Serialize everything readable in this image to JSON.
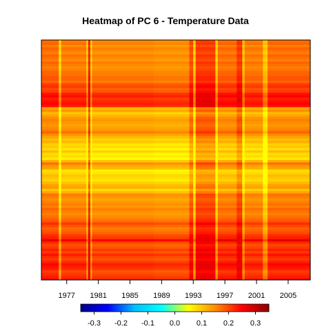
{
  "chart_data": {
    "type": "heatmap",
    "title": "Heatmap of PC 6  - Temperature Data",
    "x_tick_labels": [
      "1977",
      "1981",
      "1985",
      "1989",
      "1993",
      "1997",
      "2001",
      "2005"
    ],
    "x_tick_values": [
      1977,
      1981,
      1985,
      1989,
      1993,
      1997,
      2001,
      2005
    ],
    "xlim": [
      1973.8,
      2007.8
    ],
    "colorbar": {
      "tick_labels": [
        "-0.3",
        "-0.2",
        "-0.1",
        "0.0",
        "0.1",
        "0.2",
        "0.3"
      ],
      "tick_values": [
        -0.3,
        -0.2,
        -0.1,
        0.0,
        0.1,
        0.2,
        0.3
      ],
      "range": [
        -0.35,
        0.35
      ],
      "stops": [
        "#00008B",
        "#0000FF",
        "#00BFFF",
        "#00FFFF",
        "#FFFF00",
        "#FF8C00",
        "#FF0000",
        "#8B0000"
      ]
    },
    "value_range_shown": [
      0.05,
      0.27
    ],
    "row_profile": [
      0.16,
      0.17,
      0.15,
      0.17,
      0.16,
      0.15,
      0.17,
      0.16,
      0.15,
      0.17,
      0.16,
      0.15,
      0.16,
      0.17,
      0.17,
      0.18,
      0.18,
      0.17,
      0.2,
      0.21,
      0.19,
      0.2,
      0.23,
      0.24,
      0.22,
      0.23,
      0.24,
      0.23,
      0.12,
      0.14,
      0.1,
      0.12,
      0.14,
      0.15,
      0.14,
      0.13,
      0.14,
      0.15,
      0.17,
      0.14,
      0.12,
      0.1,
      0.11,
      0.08,
      0.09,
      0.07,
      0.1,
      0.07,
      0.08,
      0.06,
      0.11,
      0.16,
      0.13,
      0.12,
      0.07,
      0.08,
      0.1,
      0.09,
      0.08,
      0.1,
      0.12,
      0.13,
      0.09,
      0.12,
      0.16,
      0.15,
      0.14,
      0.15,
      0.16,
      0.15,
      0.17,
      0.16,
      0.15,
      0.16,
      0.17,
      0.18,
      0.21,
      0.19,
      0.17,
      0.18,
      0.19,
      0.21,
      0.22,
      0.26,
      0.21,
      0.19,
      0.2,
      0.22,
      0.2,
      0.23,
      0.21,
      0.2,
      0.22,
      0.24,
      0.23,
      0.22,
      0.2,
      0.21,
      0.22,
      0.23
    ],
    "column_offsets": [
      {
        "from": 1973.8,
        "to": 1976.0,
        "offset": 0.01
      },
      {
        "from": 1976.0,
        "to": 1976.3,
        "offset": -0.08
      },
      {
        "from": 1976.3,
        "to": 1979.5,
        "offset": 0.0
      },
      {
        "from": 1979.5,
        "to": 1979.7,
        "offset": -0.08
      },
      {
        "from": 1979.7,
        "to": 1980.0,
        "offset": 0.06
      },
      {
        "from": 1980.0,
        "to": 1980.2,
        "offset": -0.08
      },
      {
        "from": 1980.2,
        "to": 1988.0,
        "offset": -0.01
      },
      {
        "from": 1988.0,
        "to": 1992.5,
        "offset": -0.015
      },
      {
        "from": 1992.5,
        "to": 1993.0,
        "offset": 0.035
      },
      {
        "from": 1993.0,
        "to": 1993.3,
        "offset": -0.07
      },
      {
        "from": 1993.3,
        "to": 1995.8,
        "offset": 0.045
      },
      {
        "from": 1995.8,
        "to": 1996.1,
        "offset": -0.07
      },
      {
        "from": 1996.1,
        "to": 1998.5,
        "offset": 0.01
      },
      {
        "from": 1998.5,
        "to": 1999.2,
        "offset": 0.05
      },
      {
        "from": 1999.2,
        "to": 1999.5,
        "offset": -0.06
      },
      {
        "from": 1999.5,
        "to": 2001.8,
        "offset": 0.0
      },
      {
        "from": 2001.8,
        "to": 2002.4,
        "offset": -0.06
      },
      {
        "from": 2002.4,
        "to": 2007.8,
        "offset": 0.01
      }
    ]
  }
}
